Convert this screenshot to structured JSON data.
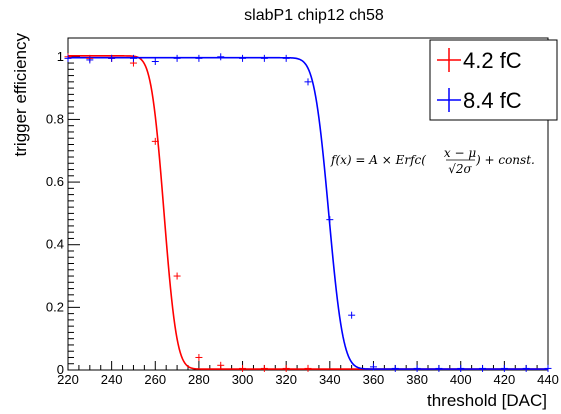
{
  "chart_data": {
    "type": "scatter",
    "title": "slabP1 chip12 ch58",
    "xlabel": "threshold [DAC]",
    "ylabel": "trigger efficiency",
    "xlim": [
      220,
      440
    ],
    "ylim": [
      0,
      1.06
    ],
    "x_ticks": [
      "220",
      "240",
      "260",
      "280",
      "300",
      "320",
      "340",
      "360",
      "380",
      "400",
      "420",
      "440"
    ],
    "y_ticks": [
      "0",
      "0.2",
      "0.4",
      "0.6",
      "0.8",
      "1"
    ],
    "legend_position": "top-right",
    "formula": {
      "lhs": "f(x) = A × Erfc(",
      "numerator": "x − μ",
      "denominator": "√2σ",
      "rhs": ") + const."
    },
    "series": [
      {
        "name": "4.2 fC",
        "color": "#ff0000",
        "x": [
          220,
          230,
          240,
          250,
          260,
          270,
          280,
          290,
          300,
          310,
          320,
          330
        ],
        "y": [
          1.0,
          0.995,
          0.995,
          0.98,
          0.73,
          0.3,
          0.04,
          0.015,
          0.005,
          0.005,
          0.005,
          0.005
        ],
        "fit": {
          "mu": 264,
          "sigma": 4.6,
          "A": 0.5,
          "const": 0.003
        }
      },
      {
        "name": "8.4 fC",
        "color": "#0000ff",
        "x": [
          220,
          230,
          240,
          250,
          260,
          270,
          280,
          290,
          300,
          310,
          320,
          330,
          340,
          350,
          360,
          370,
          380,
          390,
          400,
          410,
          420,
          430,
          440
        ],
        "y": [
          0.995,
          0.99,
          0.995,
          0.995,
          0.985,
          0.995,
          0.995,
          1.0,
          0.995,
          0.995,
          0.995,
          0.92,
          0.48,
          0.175,
          0.01,
          0.005,
          0.005,
          0.005,
          0.005,
          0.005,
          0.005,
          0.005,
          0.005
        ],
        "fit": {
          "mu": 339.5,
          "sigma": 5.2,
          "A": 0.497,
          "const": 0.003
        }
      }
    ]
  }
}
